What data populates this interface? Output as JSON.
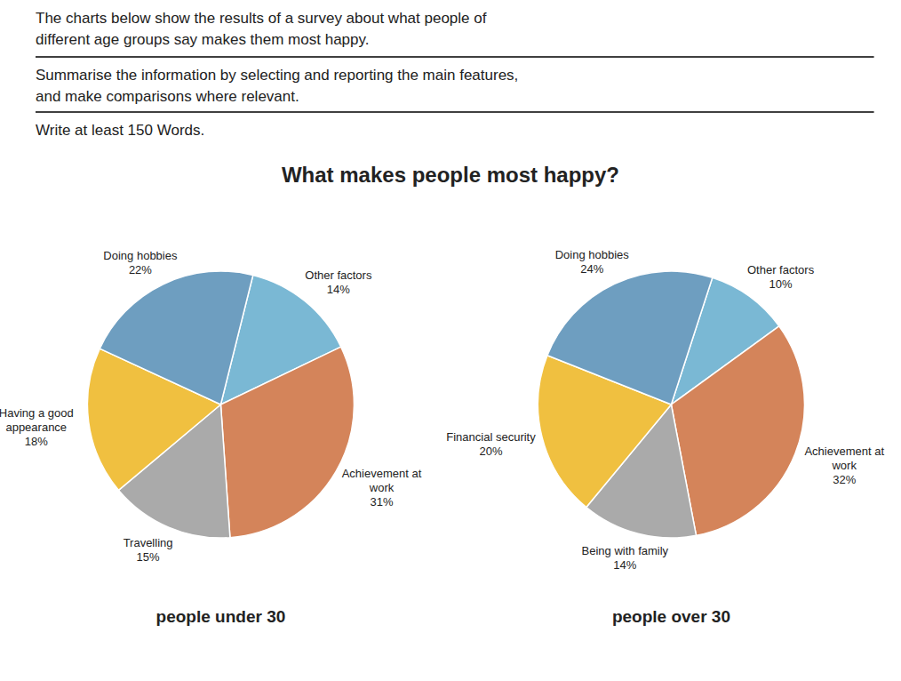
{
  "chart_data": [
    {
      "type": "pie",
      "title": "What makes people most happy?",
      "annotations": [
        "The charts below show the results of a survey about what people of\ndifferent age groups say makes them most happy.",
        "Summarise the information by selecting and reporting the main features,\nand make comparisons where relevant.",
        "Write at least 150 Words."
      ],
      "subtitle": "people under 30",
      "categories": [
        "Other factors\n14%",
        "Achievement at\nwork\n31%",
        "Travelling\n15%",
        "Having a good\nappearance\n18%",
        "Doing hobbies\n22%"
      ],
      "values": [
        14,
        31,
        15,
        18,
        22
      ],
      "colors": [
        "#7ab8d4",
        "#d4845a",
        "#aaaaaa",
        "#f0c040",
        "#6e9ec0"
      ]
    },
    {
      "type": "pie",
      "subtitle": "people over 30",
      "categories": [
        "Other factors\n10%",
        "Achievement at\nwork\n32%",
        "Being with family\n14%",
        "Financial security\n20%",
        "Doing hobbies\n24%"
      ],
      "values": [
        10,
        32,
        14,
        20,
        24
      ],
      "colors": [
        "#7ab8d4",
        "#d4845a",
        "#aaaaaa",
        "#f0c040",
        "#6e9ec0"
      ]
    }
  ]
}
